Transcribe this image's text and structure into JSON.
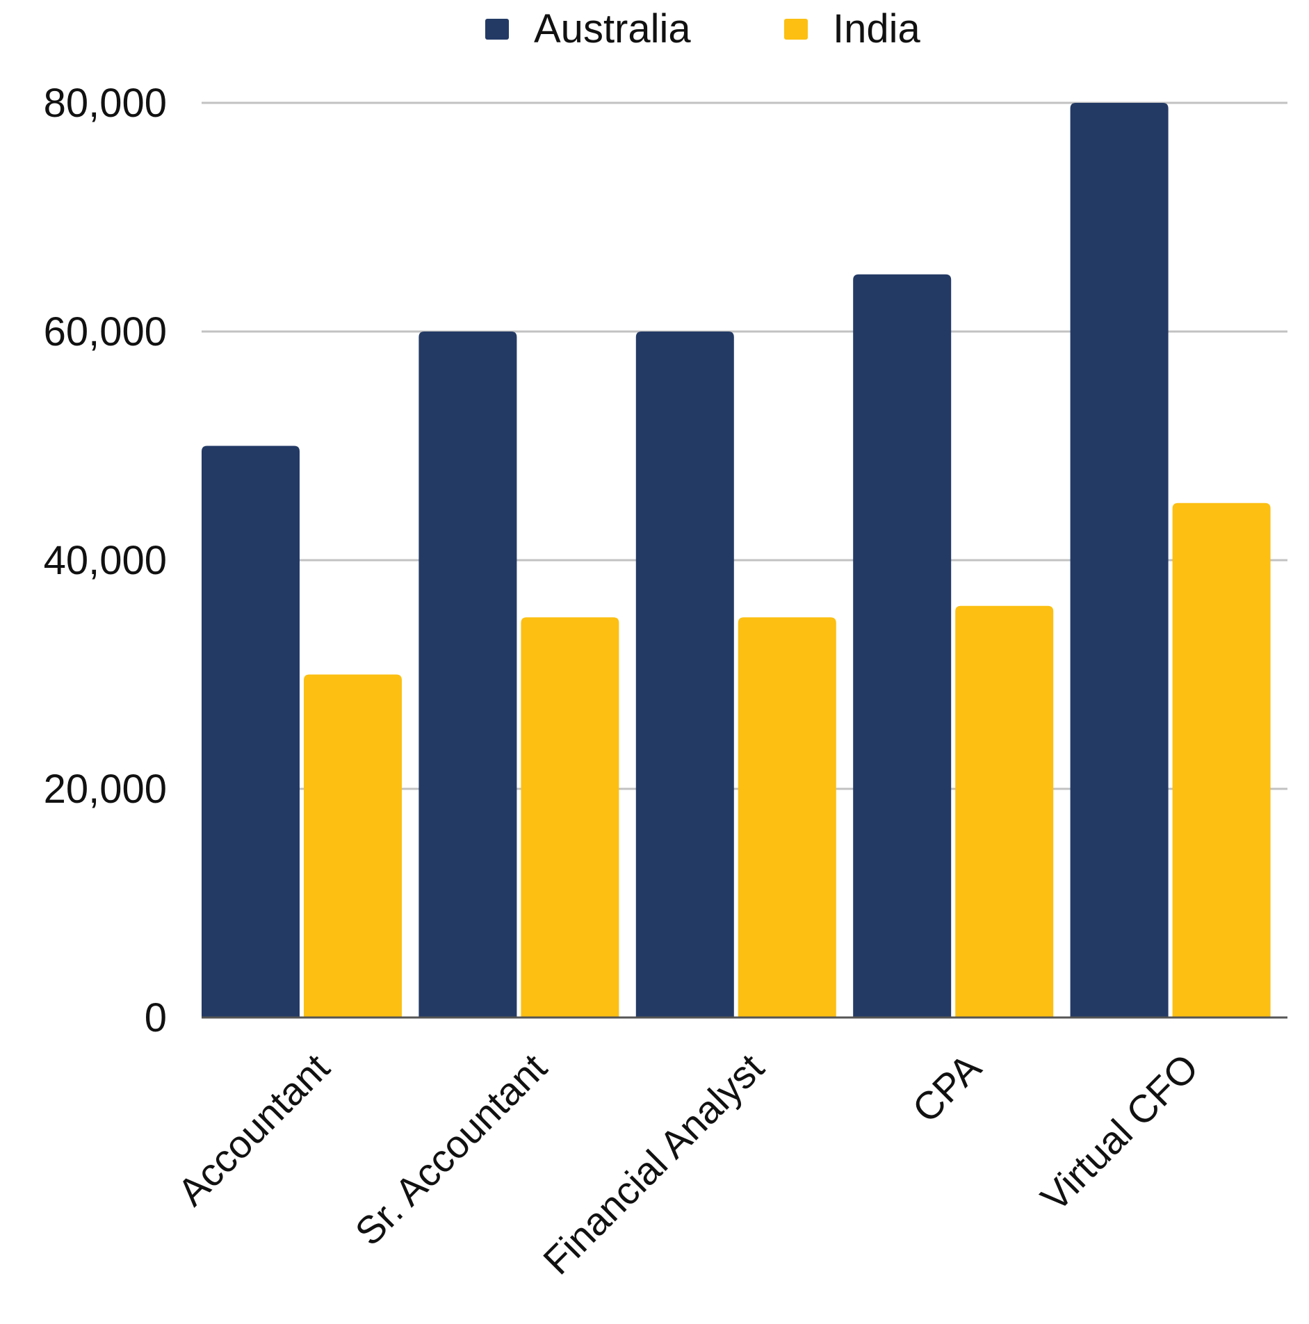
{
  "chart_data": {
    "type": "bar",
    "categories": [
      "Accountant",
      "Sr. Accountant",
      "Financial Analyst",
      "CPA",
      "Virtual CFO"
    ],
    "series": [
      {
        "name": "Australia",
        "color": "#233a65",
        "values": [
          50000,
          60000,
          60000,
          65000,
          80000
        ]
      },
      {
        "name": "India",
        "color": "#fcbf12",
        "values": [
          30000,
          35000,
          35000,
          36000,
          45000
        ]
      }
    ],
    "y_ticks": [
      "0",
      "20,000",
      "40,000",
      "60,000",
      "80,000"
    ],
    "ylim": [
      0,
      80000
    ],
    "grid": true,
    "legend_position": "top-center",
    "colors": {
      "grid": "#c2c2c2",
      "axis": "#555555"
    }
  }
}
